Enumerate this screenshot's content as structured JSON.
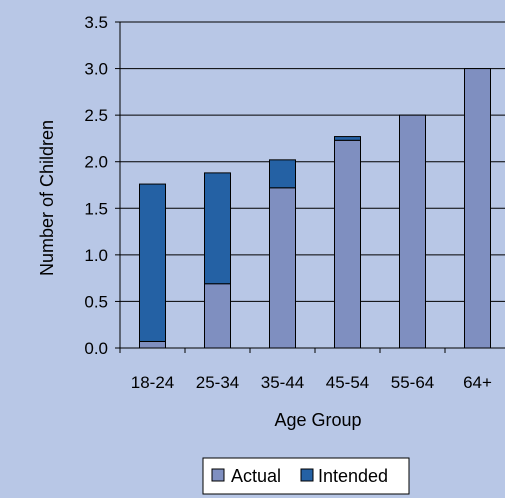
{
  "chart_data": {
    "type": "bar",
    "stacked": true,
    "title": "",
    "xlabel": "Age Group",
    "ylabel": "Number of Children",
    "ylim": [
      0,
      3.5
    ],
    "yticks": [
      "0.0",
      "0.5",
      "1.0",
      "1.5",
      "2.0",
      "2.5",
      "3.0",
      "3.5"
    ],
    "categories": [
      "18-24",
      "25-34",
      "35-44",
      "45-54",
      "55-64",
      "64+"
    ],
    "series": [
      {
        "name": "Actual",
        "color": "#7f8fc0",
        "values": [
          0.07,
          0.69,
          1.72,
          2.23,
          2.5,
          3.0
        ]
      },
      {
        "name": "Intended",
        "color": "#2461a4",
        "values": [
          1.69,
          1.19,
          0.3,
          0.04,
          0,
          0
        ]
      }
    ],
    "grid": true,
    "legend_position": "bottom-center"
  }
}
